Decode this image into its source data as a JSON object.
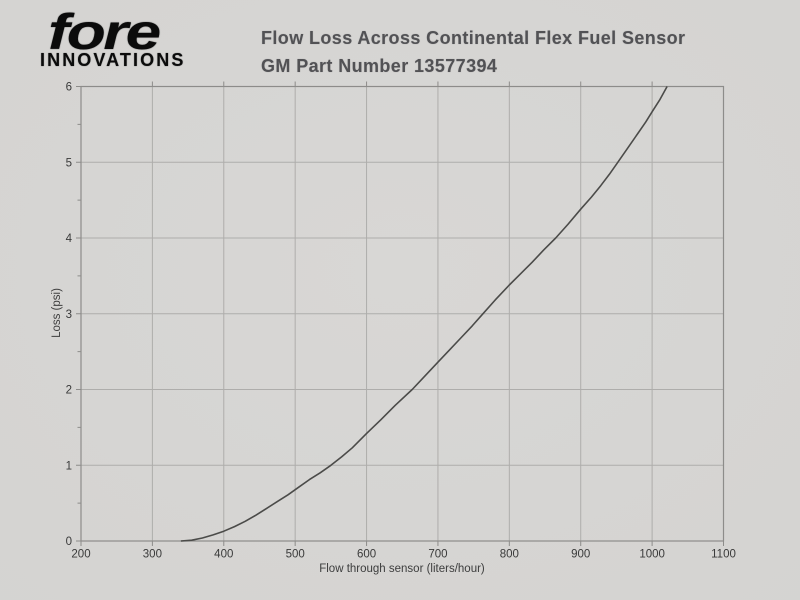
{
  "logo": {
    "brand": "fore",
    "sub": "INNOVATIONS"
  },
  "title": {
    "line1": "Flow Loss Across Continental Flex Fuel Sensor",
    "line2": "GM Part Number 13577394"
  },
  "colors": {
    "background": "#d5d4d2",
    "grid": "#aeadab",
    "axis": "#8d8c8a",
    "curve": "#4b4b49",
    "tick_text": "#3a3a3a",
    "title_text": "#525255",
    "logo_text": "#0b0b0b"
  },
  "chart_data": {
    "type": "line",
    "title": "Flow Loss Across Continental Flex Fuel Sensor GM Part Number 13577394",
    "xlabel": "Flow through sensor (liters/hour)",
    "ylabel": "Loss (psi)",
    "xlim": [
      200,
      1100
    ],
    "ylim": [
      0,
      6
    ],
    "x_ticks": [
      200,
      300,
      400,
      500,
      600,
      700,
      800,
      900,
      1000,
      1100
    ],
    "y_ticks": [
      0,
      1,
      2,
      3,
      4,
      5,
      6
    ],
    "y_minor_step": 0.5,
    "grid": true,
    "legend": "none",
    "series": [
      {
        "name": "Flow loss curve",
        "points": [
          [
            340,
            0
          ],
          [
            355,
            0.01
          ],
          [
            370,
            0.04
          ],
          [
            385,
            0.08
          ],
          [
            400,
            0.13
          ],
          [
            415,
            0.19
          ],
          [
            430,
            0.26
          ],
          [
            445,
            0.34
          ],
          [
            460,
            0.43
          ],
          [
            475,
            0.52
          ],
          [
            490,
            0.61
          ],
          [
            505,
            0.71
          ],
          [
            520,
            0.81
          ],
          [
            535,
            0.9
          ],
          [
            550,
            1.0
          ],
          [
            565,
            1.11
          ],
          [
            580,
            1.23
          ],
          [
            600,
            1.42
          ],
          [
            620,
            1.6
          ],
          [
            640,
            1.79
          ],
          [
            664,
            2.0
          ],
          [
            685,
            2.21
          ],
          [
            700,
            2.36
          ],
          [
            716,
            2.52
          ],
          [
            732,
            2.68
          ],
          [
            748,
            2.84
          ],
          [
            763,
            3.0
          ],
          [
            780,
            3.18
          ],
          [
            800,
            3.38
          ],
          [
            816,
            3.53
          ],
          [
            832,
            3.68
          ],
          [
            848,
            3.84
          ],
          [
            865,
            4.0
          ],
          [
            882,
            4.18
          ],
          [
            900,
            4.38
          ],
          [
            915,
            4.54
          ],
          [
            928,
            4.69
          ],
          [
            940,
            4.84
          ],
          [
            952,
            5.0
          ],
          [
            966,
            5.19
          ],
          [
            980,
            5.38
          ],
          [
            991,
            5.53
          ],
          [
            1001,
            5.68
          ],
          [
            1011,
            5.83
          ],
          [
            1021,
            6.0
          ]
        ]
      }
    ]
  }
}
